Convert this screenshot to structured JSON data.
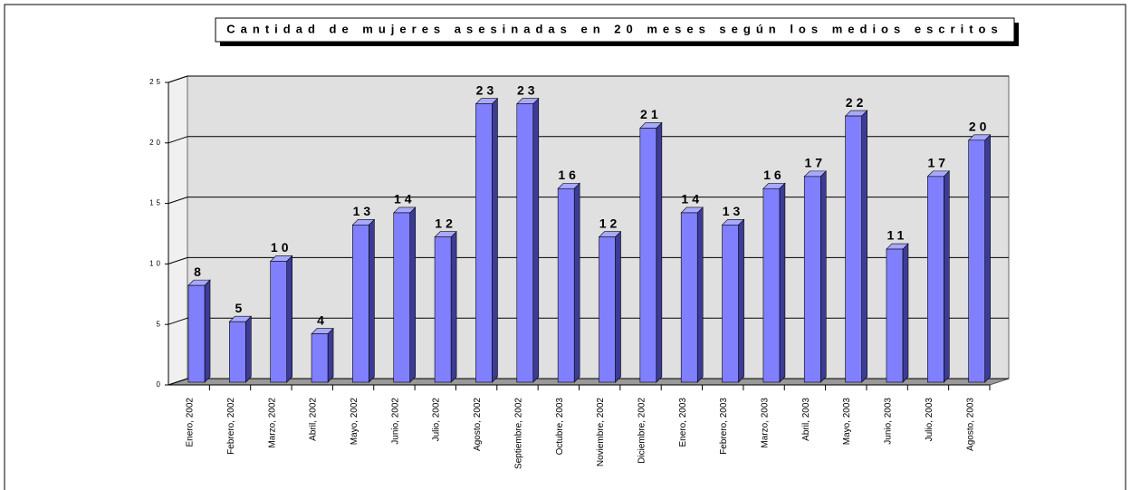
{
  "chart_data": {
    "type": "bar",
    "title": "Cantidad de mujeres asesinadas en 20 meses según los medios escritos",
    "categories": [
      "Enero, 2002",
      "Febrero, 2002",
      "Marzo, 2002",
      "Abril, 2002",
      "Mayo, 2002",
      "Junio, 2002",
      "Julio, 2002",
      "Agosto, 2002",
      "Septiembre, 2002",
      "Octubre, 2003",
      "Noviembre, 2002",
      "Diciembre, 2002",
      "Enero, 2003",
      "Febrero, 2003",
      "Marzo, 2003",
      "Abril, 2003",
      "Mayo, 2003",
      "Junio, 2003",
      "Julio, 2003",
      "Agosto, 2003"
    ],
    "values": [
      8,
      5,
      10,
      4,
      13,
      14,
      12,
      23,
      23,
      16,
      12,
      21,
      14,
      13,
      16,
      17,
      22,
      11,
      17,
      20
    ],
    "color": "#8080ff",
    "ylim": [
      0,
      25
    ],
    "yticks": [
      0,
      5,
      10,
      15,
      20,
      25
    ],
    "grid": true
  }
}
